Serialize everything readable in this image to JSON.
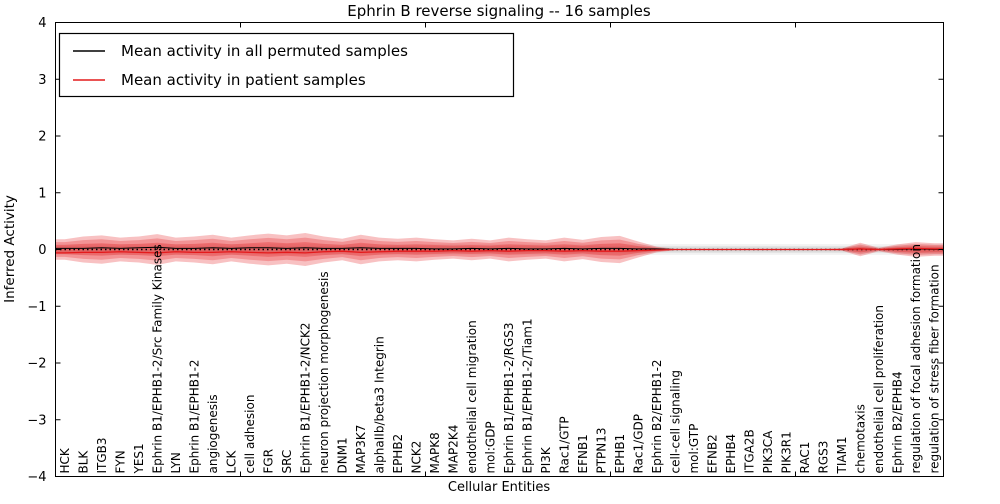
{
  "figure_title": "Ephrin B reverse signaling -- 16 samples",
  "axes": {
    "ylabel": "Inferred Activity",
    "xlabel": "Cellular Entities",
    "yticks": [
      "4",
      "3",
      "2",
      "1",
      "0",
      "−1",
      "−2",
      "−3",
      "−4"
    ]
  },
  "legend": {
    "position": "upper left",
    "entries": [
      {
        "label": "Mean activity in all permuted samples",
        "color": "#000000"
      },
      {
        "label": "Mean activity in patient samples",
        "color": "#e41a1c"
      }
    ]
  },
  "chart_data": {
    "type": "area",
    "title": "Ephrin B reverse signaling -- 16 samples",
    "xlabel": "Cellular Entities",
    "ylabel": "Inferred Activity",
    "ylim": [
      -4,
      4
    ],
    "grid": false,
    "legend_position": "upper left",
    "yticks": [
      "4",
      "3",
      "2",
      "1",
      "0",
      "−1",
      "−2",
      "−3",
      "−4"
    ],
    "categories": [
      "HCK",
      "BLK",
      "ITGB3",
      "FYN",
      "YES1",
      "Ephrin B1/EPHB1-2/Src Family Kinases",
      "LYN",
      "Ephrin B1/EPHB1-2",
      "angiogenesis",
      "LCK",
      "cell adhesion",
      "FGR",
      "SRC",
      "Ephrin B1/EPHB1-2/NCK2",
      "neuron projection morphogenesis",
      "DNM1",
      "MAP3K7",
      "alphaIIb/beta3 Integrin",
      "EPHB2",
      "NCK2",
      "MAPK8",
      "MAP2K4",
      "endothelial cell migration",
      "mol:GDP",
      "Ephrin B1/EPHB1-2/RGS3",
      "Ephrin B1/EPHB1-2/Tiam1",
      "PI3K",
      "Rac1/GTP",
      "EFNB1",
      "PTPN13",
      "EPHB1",
      "Rac1/GDP",
      "Ephrin B2/EPHB1-2",
      "cell-cell signaling",
      "mol:GTP",
      "EFNB2",
      "EPHB4",
      "ITGA2B",
      "PIK3CA",
      "PIK3R1",
      "RAC1",
      "RGS3",
      "TIAM1",
      "chemotaxis",
      "endothelial cell proliferation",
      "Ephrin B2/EPHB4",
      "regulation of focal adhesion formation",
      "regulation of stress fiber formation"
    ],
    "series": [
      {
        "name": "Mean activity in all permuted samples",
        "color": "#000000",
        "values": [
          0.02,
          0.02,
          0.03,
          0.02,
          0.03,
          0.04,
          0.02,
          0.02,
          0.03,
          0.02,
          0.03,
          0.03,
          0.02,
          0.03,
          0.02,
          0.02,
          0.03,
          0.02,
          0.02,
          0.02,
          0.01,
          0.01,
          0.02,
          0.01,
          0.02,
          0.01,
          0.01,
          0.02,
          0.01,
          0.02,
          0.02,
          0.01,
          0.01,
          0,
          0,
          0,
          0,
          0,
          0,
          0,
          0,
          0,
          0,
          0.01,
          0,
          0,
          0.01,
          0
        ]
      },
      {
        "name": "Mean activity in patient samples",
        "color": "#e41a1c",
        "values": [
          -0.06,
          -0.05,
          -0.05,
          -0.04,
          -0.05,
          -0.06,
          -0.04,
          -0.05,
          -0.05,
          -0.04,
          -0.05,
          -0.06,
          -0.05,
          -0.06,
          -0.04,
          -0.03,
          -0.05,
          -0.04,
          -0.03,
          -0.03,
          -0.03,
          -0.02,
          -0.03,
          -0.02,
          -0.03,
          -0.02,
          -0.02,
          -0.03,
          -0.02,
          -0.03,
          -0.03,
          -0.02,
          -0.01,
          0,
          0,
          0,
          0,
          0,
          0,
          0,
          0,
          0,
          0,
          0.01,
          0,
          0.01,
          0.02,
          0.01
        ]
      }
    ],
    "patient_band_outer_halfwidth": [
      0.18,
      0.23,
      0.25,
      0.21,
      0.23,
      0.27,
      0.21,
      0.23,
      0.26,
      0.21,
      0.25,
      0.28,
      0.25,
      0.29,
      0.23,
      0.19,
      0.26,
      0.21,
      0.19,
      0.21,
      0.18,
      0.16,
      0.19,
      0.16,
      0.21,
      0.18,
      0.16,
      0.21,
      0.17,
      0.22,
      0.24,
      0.14,
      0.05,
      0.01,
      0.01,
      0.01,
      0.01,
      0.01,
      0.01,
      0.01,
      0.01,
      0.01,
      0.02,
      0.12,
      0.03,
      0.09,
      0.13,
      0.11
    ],
    "patient_band_inner_halfwidth": [
      0.08,
      0.1,
      0.11,
      0.09,
      0.1,
      0.12,
      0.09,
      0.1,
      0.12,
      0.09,
      0.11,
      0.13,
      0.11,
      0.13,
      0.1,
      0.08,
      0.12,
      0.09,
      0.08,
      0.09,
      0.08,
      0.07,
      0.08,
      0.07,
      0.09,
      0.08,
      0.07,
      0.09,
      0.07,
      0.1,
      0.11,
      0.06,
      0.02,
      0,
      0,
      0,
      0,
      0,
      0,
      0,
      0,
      0,
      0.01,
      0.05,
      0.01,
      0.04,
      0.06,
      0.05
    ],
    "permuted_band_outer_halfwidth": 0.095,
    "permuted_band_inner_halfwidth": 0.055,
    "colors": {
      "patient": "#e41a1c",
      "permuted": "#000000",
      "patient_band": "#e41a1c",
      "permuted_band": "#bdbdbd"
    }
  }
}
